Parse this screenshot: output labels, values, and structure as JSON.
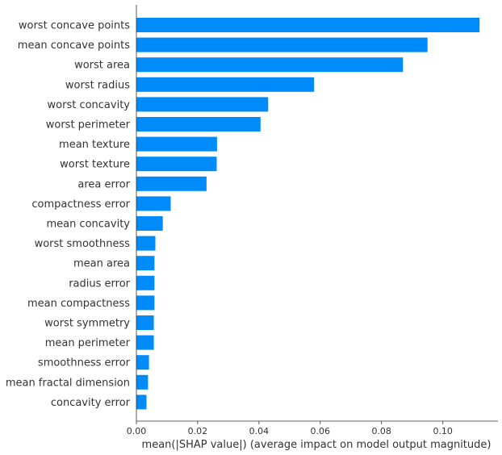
{
  "chart_data": {
    "type": "bar",
    "orientation": "horizontal",
    "categories": [
      "worst concave points",
      "mean concave points",
      "worst area",
      "worst radius",
      "worst concavity",
      "worst perimeter",
      "mean texture",
      "worst texture",
      "area error",
      "compactness error",
      "mean concavity",
      "worst smoothness",
      "mean area",
      "radius error",
      "mean compactness",
      "worst symmetry",
      "mean perimeter",
      "smoothness error",
      "mean fractal dimension",
      "concavity error"
    ],
    "values": [
      0.112,
      0.095,
      0.087,
      0.058,
      0.043,
      0.0405,
      0.0263,
      0.0262,
      0.0229,
      0.0112,
      0.0086,
      0.0062,
      0.0059,
      0.0059,
      0.0059,
      0.0057,
      0.0057,
      0.0041,
      0.0038,
      0.0033
    ],
    "xticks": [
      0.0,
      0.02,
      0.04,
      0.06,
      0.08,
      0.1
    ],
    "xtick_labels": [
      "0.00",
      "0.02",
      "0.04",
      "0.06",
      "0.08",
      "0.10"
    ],
    "xlim": [
      0,
      0.118
    ],
    "xlabel": "mean(|SHAP value|) (average impact on model output magnitude)",
    "title": "",
    "ylabel": "",
    "grid": false,
    "bar_color": "#008bfb",
    "axis_color": "#333333"
  }
}
